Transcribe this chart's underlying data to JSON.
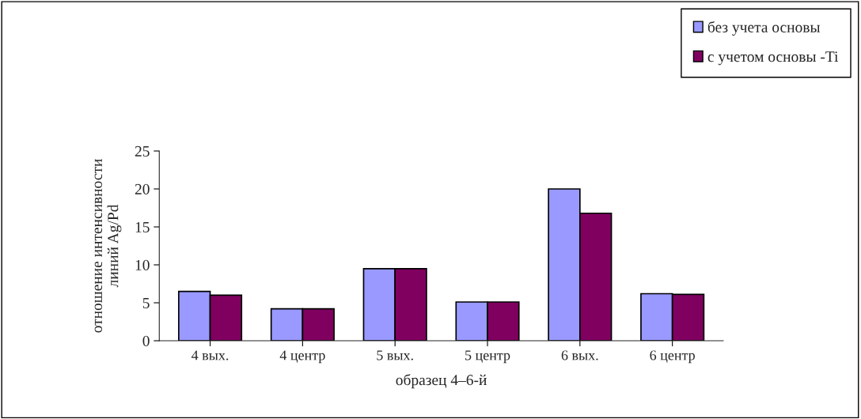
{
  "chart_data": {
    "type": "bar",
    "categories": [
      "4 вых.",
      "4 центр",
      "5 вых.",
      "5 центр",
      "6 вых.",
      "6 центр"
    ],
    "series": [
      {
        "name": "без учета основы",
        "color": "#9999ff",
        "values": [
          6.5,
          4.2,
          9.5,
          5.1,
          20,
          6.2
        ]
      },
      {
        "name": "с учетом основы -Ti",
        "color": "#800060",
        "values": [
          6.0,
          4.2,
          9.5,
          5.1,
          16.8,
          6.1
        ]
      }
    ],
    "xlabel": "образец 4–6-й",
    "ylabel": "отношение интенсивности\nлиний Ag/Pd",
    "ylim": [
      0,
      25
    ],
    "yticks": [
      0,
      5,
      10,
      15,
      20,
      25
    ],
    "grid": false,
    "legend": "top right"
  }
}
